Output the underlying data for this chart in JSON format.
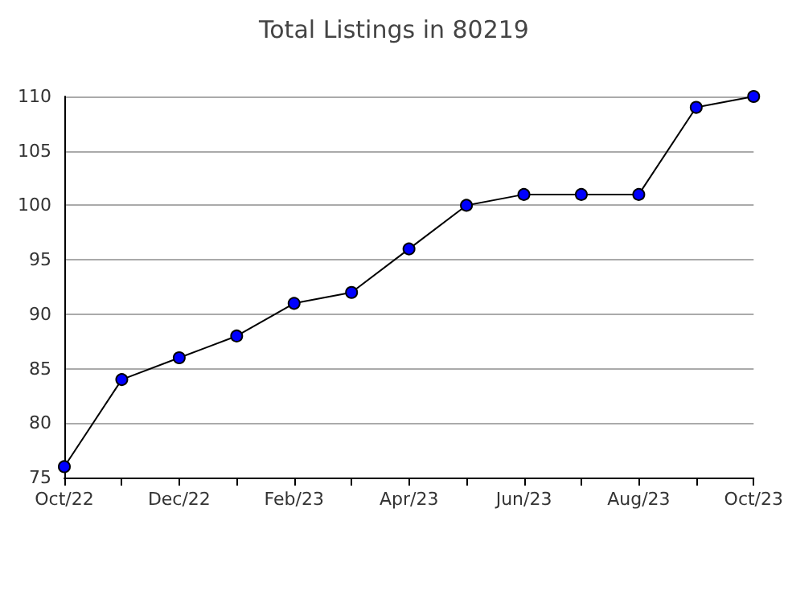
{
  "chart_data": {
    "type": "line",
    "title": "Total Listings in 80219",
    "categories": [
      "Oct/22",
      null,
      "Dec/22",
      null,
      "Feb/23",
      null,
      "Apr/23",
      null,
      "Jun/23",
      null,
      "Aug/23",
      null,
      "Oct/23"
    ],
    "series": [
      {
        "color": "#000000",
        "colors": [
          "#0000ff",
          "#0000ff",
          "#0000ff",
          "#0000ff",
          "#0000ff",
          "#0000ff",
          "#0000ff",
          "#0000ff",
          "#0000ff",
          "#0000ff",
          "#0000ff",
          "#0000ff",
          "#0000ff"
        ],
        "values": [
          76,
          84,
          86,
          88,
          91,
          92,
          96,
          100,
          101,
          101,
          101,
          109,
          110
        ]
      }
    ],
    "ylim": [
      75,
      110
    ],
    "yticks": [
      75,
      80,
      85,
      90,
      95,
      100,
      105,
      110
    ],
    "grid": "y",
    "marker": "circle",
    "line_style": "solid"
  }
}
